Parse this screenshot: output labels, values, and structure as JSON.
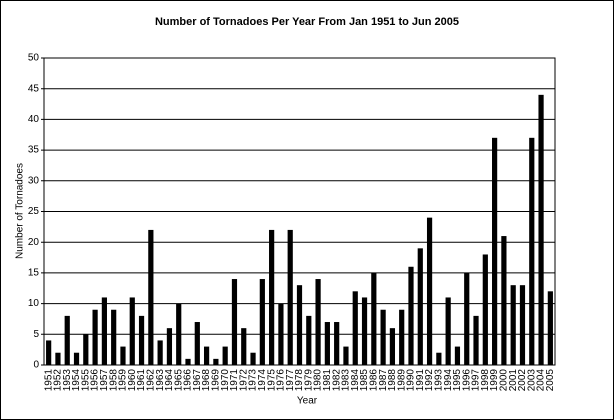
{
  "chart_data": {
    "type": "bar",
    "title": "Number of Tornadoes Per Year From Jan 1951 to Jun 2005",
    "x_label": "Year",
    "y_label": "Number of Tornadoes",
    "categories": [
      "1951",
      "1952",
      "1953",
      "1954",
      "1955",
      "1956",
      "1957",
      "1958",
      "1959",
      "1960",
      "1961",
      "1962",
      "1963",
      "1964",
      "1965",
      "1966",
      "1967",
      "1968",
      "1969",
      "1970",
      "1971",
      "1972",
      "1973",
      "1974",
      "1975",
      "1976",
      "1977",
      "1978",
      "1979",
      "1980",
      "1981",
      "1982",
      "1983",
      "1984",
      "1985",
      "1986",
      "1987",
      "1988",
      "1989",
      "1990",
      "1991",
      "1992",
      "1993",
      "1994",
      "1995",
      "1996",
      "1997",
      "1998",
      "1999",
      "2000",
      "2001",
      "2002",
      "2003",
      "2004",
      "2005"
    ],
    "values": [
      4,
      2,
      8,
      2,
      5,
      9,
      11,
      9,
      3,
      11,
      8,
      22,
      4,
      6,
      10,
      1,
      7,
      3,
      1,
      3,
      14,
      6,
      2,
      14,
      22,
      10,
      22,
      13,
      8,
      14,
      7,
      7,
      3,
      12,
      11,
      15,
      9,
      6,
      9,
      16,
      19,
      24,
      2,
      11,
      3,
      15,
      8,
      18,
      37,
      21,
      13,
      13,
      37,
      44,
      12
    ],
    "color": "#000000",
    "ylim": [
      0,
      50
    ],
    "yticks": [
      0,
      5,
      10,
      15,
      20,
      25,
      30,
      35,
      40,
      45,
      50
    ],
    "grid": true
  }
}
